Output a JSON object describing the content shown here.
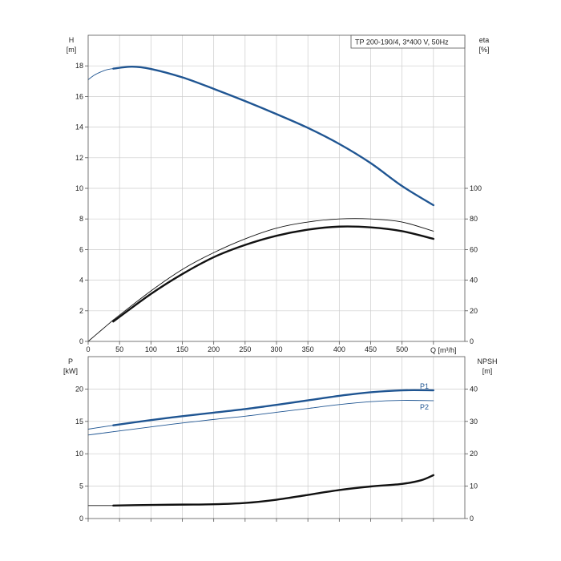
{
  "title": "TP 200-190/4, 3*400 V, 50Hz",
  "colors": {
    "blue": "#1f5592",
    "black": "#111111",
    "grid": "#cccccc",
    "frame": "#555555"
  },
  "chart_data": [
    {
      "type": "line",
      "panel": "top",
      "title": "TP 200-190/4, 3*400 V, 50Hz",
      "xlabel": "Q [m³/h]",
      "xlim": [
        0,
        600
      ],
      "xticks": [
        0,
        50,
        100,
        150,
        200,
        250,
        300,
        350,
        400,
        450,
        500
      ],
      "ylabel_left": [
        "H",
        "[m]"
      ],
      "ylim_left": [
        0,
        20
      ],
      "yticks_left": [
        0,
        2,
        4,
        6,
        8,
        10,
        12,
        14,
        16,
        18
      ],
      "ylabel_right": [
        "eta",
        "[%]"
      ],
      "ylim_right": [
        0,
        200
      ],
      "yticks_right": [
        0,
        20,
        40,
        60,
        80,
        100
      ],
      "grid": true,
      "series": [
        {
          "axis": "left",
          "style": "thin",
          "color": "#1f5592",
          "x": [
            0,
            10,
            20,
            30,
            40
          ],
          "y": [
            17.1,
            17.4,
            17.6,
            17.75,
            17.82
          ]
        },
        {
          "axis": "left",
          "style": "thick",
          "color": "#1f5592",
          "x": [
            40,
            70,
            100,
            150,
            200,
            250,
            300,
            350,
            400,
            450,
            500,
            550
          ],
          "y": [
            17.82,
            17.95,
            17.8,
            17.25,
            16.5,
            15.7,
            14.85,
            13.95,
            12.9,
            11.65,
            10.15,
            8.9
          ]
        },
        {
          "axis": "right",
          "style": "thin",
          "color": "#111111",
          "x": [
            0,
            20,
            40
          ],
          "y": [
            0,
            7,
            14
          ]
        },
        {
          "axis": "right",
          "style": "thin",
          "color": "#111111",
          "x": [
            40,
            100,
            150,
            200,
            250,
            300,
            350,
            400,
            450,
            500,
            550
          ],
          "y": [
            14,
            33,
            47,
            58,
            67,
            74,
            78,
            80,
            80,
            78,
            72
          ]
        },
        {
          "axis": "right",
          "style": "thick",
          "color": "#111111",
          "x": [
            40,
            100,
            150,
            200,
            250,
            300,
            350,
            400,
            450,
            500,
            550
          ],
          "y": [
            13,
            31,
            44,
            55,
            63,
            69,
            73,
            75,
            74.5,
            72,
            67
          ]
        }
      ]
    },
    {
      "type": "line",
      "panel": "bottom",
      "xlim": [
        0,
        600
      ],
      "ylabel_left": [
        "P",
        "[kW]"
      ],
      "ylim_left": [
        0,
        25
      ],
      "yticks_left": [
        0,
        5,
        10,
        15,
        20
      ],
      "ylabel_right": [
        "NPSH",
        "[m]"
      ],
      "ylim_right": [
        0,
        50
      ],
      "yticks_right": [
        0,
        10,
        20,
        30,
        40
      ],
      "grid": true,
      "series": [
        {
          "axis": "left",
          "style": "thin",
          "color": "#1f5592",
          "x": [
            0,
            20,
            40
          ],
          "y": [
            13.8,
            14.1,
            14.4
          ]
        },
        {
          "name": "P1",
          "axis": "left",
          "style": "thick",
          "color": "#1f5592",
          "x": [
            40,
            100,
            150,
            200,
            250,
            300,
            350,
            400,
            450,
            500,
            550
          ],
          "y": [
            14.4,
            15.2,
            15.8,
            16.35,
            16.9,
            17.55,
            18.25,
            18.95,
            19.5,
            19.8,
            19.8
          ]
        },
        {
          "axis": "left",
          "style": "thin",
          "color": "#1f5592",
          "x": [
            0,
            20,
            40
          ],
          "y": [
            12.9,
            13.15,
            13.4
          ]
        },
        {
          "name": "P2",
          "axis": "left",
          "style": "thin",
          "color": "#1f5592",
          "x": [
            40,
            100,
            150,
            200,
            250,
            300,
            350,
            400,
            450,
            500,
            550
          ],
          "y": [
            13.4,
            14.15,
            14.75,
            15.3,
            15.8,
            16.4,
            17.0,
            17.6,
            18.05,
            18.25,
            18.2
          ]
        },
        {
          "axis": "right",
          "style": "thin",
          "color": "#111111",
          "x": [
            0,
            20,
            40
          ],
          "y": [
            4,
            4,
            4
          ]
        },
        {
          "axis": "right",
          "style": "thick",
          "color": "#111111",
          "x": [
            40,
            100,
            150,
            200,
            250,
            300,
            350,
            400,
            450,
            500,
            530,
            550
          ],
          "y": [
            4,
            4.2,
            4.3,
            4.4,
            4.8,
            5.8,
            7.3,
            8.8,
            9.9,
            10.7,
            11.8,
            13.4
          ]
        }
      ]
    }
  ]
}
